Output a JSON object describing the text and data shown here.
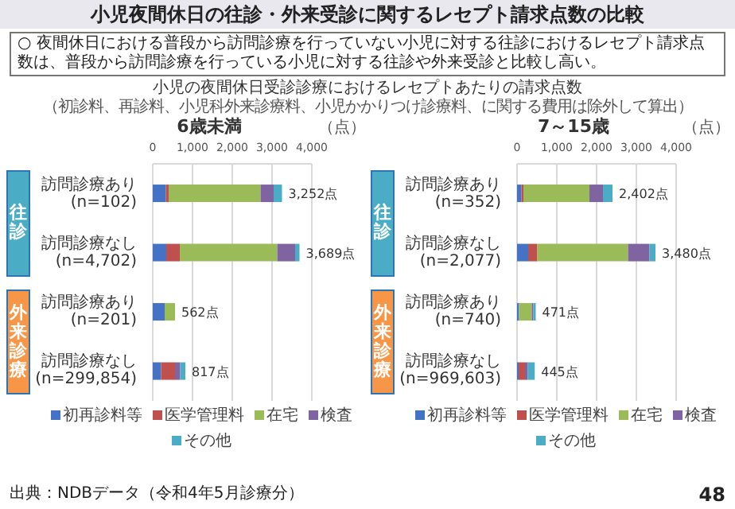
{
  "chart_data": [
    {
      "type": "bar",
      "orientation": "horizontal",
      "stacked": true,
      "title": "6歳未満",
      "categories": [
        "訪問診療あり(n=102)",
        "訪問診療なし(n=4,702)",
        "訪問診療あり(n=201)",
        "訪問診療なし(n=299,854)"
      ],
      "series": [
        {
          "name": "初再診料等",
          "color": "#4472c4",
          "values": [
            330,
            340,
            300,
            210
          ]
        },
        {
          "name": "医学管理料",
          "color": "#c0504d",
          "values": [
            70,
            340,
            0,
            350
          ]
        },
        {
          "name": "在宅",
          "color": "#9bbb59",
          "values": [
            2310,
            2450,
            260,
            0
          ]
        },
        {
          "name": "検査",
          "color": "#8064a2",
          "values": [
            330,
            450,
            0,
            130
          ]
        },
        {
          "name": "その他",
          "color": "#4bacc6",
          "values": [
            210,
            110,
            0,
            130
          ]
        }
      ],
      "totals": [
        "3,252点",
        "3,689点",
        "562点",
        "817点"
      ],
      "xlim": [
        0,
        4000
      ],
      "xticks": [
        0,
        {
          "value": 1000,
          "label": "1,000"
        },
        {
          "value": 2000,
          "label": "2,000"
        },
        {
          "value": 3000,
          "label": "3,000"
        },
        {
          "value": 4000,
          "label": "4,000"
        }
      ],
      "grid": "x",
      "legend": "bottom",
      "annotations": [
        "小児夜間休日の往診・外来受診に関するレセプト請求点数の比較",
        "○ 夜間休日における普段から訪問診療を行っていない小児に対する往診におけるレセプト請求点数は、普段から訪問診療を行っている小児に対する往診や外来受診と比較し高い。",
        "小児の夜間休日受診診療におけるレセプトあたりの請求点数",
        "（初診料、再診料、小児科外来診療料、小児かかりつけ診療料、に関する費用は除外して算出）",
        "（点）",
        "往診",
        "外来診療",
        "出典：NDBデータ（令和4年5月診療分）",
        "48"
      ]
    },
    {
      "type": "bar",
      "orientation": "horizontal",
      "stacked": true,
      "title": "7～15歳",
      "categories": [
        "訪問診療あり(n=352)",
        "訪問診療なし(n=2,077)",
        "訪問診療あり(n=740)",
        "訪問診療なし(n=969,603)"
      ],
      "series": [
        {
          "name": "初再診料等",
          "color": "#4472c4",
          "values": [
            110,
            280,
            50,
            40
          ]
        },
        {
          "name": "医学管理料",
          "color": "#c0504d",
          "values": [
            50,
            230,
            0,
            160
          ]
        },
        {
          "name": "在宅",
          "color": "#9bbb59",
          "values": [
            1660,
            2280,
            320,
            0
          ]
        },
        {
          "name": "検査",
          "color": "#8064a2",
          "values": [
            340,
            540,
            40,
            70
          ]
        },
        {
          "name": "その他",
          "color": "#4bacc6",
          "values": [
            240,
            150,
            60,
            175
          ]
        }
      ],
      "totals": [
        "2,402点",
        "3,480点",
        "471点",
        "445点"
      ],
      "xlim": [
        0,
        4000
      ],
      "xticks": [
        0,
        {
          "value": 1000,
          "label": "1,000"
        },
        {
          "value": 2000,
          "label": "2,000"
        },
        {
          "value": 3000,
          "label": "3,000"
        },
        {
          "value": 4000,
          "label": "4,000"
        }
      ],
      "grid": "x",
      "legend": "bottom",
      "annotations": [
        "（点）",
        "往診",
        "外来診療"
      ]
    }
  ]
}
